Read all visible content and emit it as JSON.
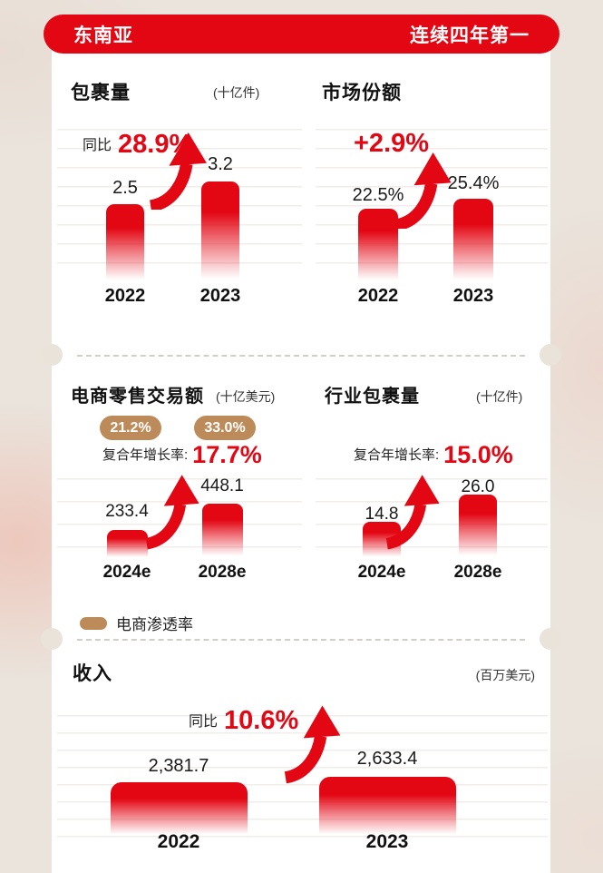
{
  "header": {
    "left_label": "东南亚",
    "right_label": "连续四年第一"
  },
  "colors": {
    "accent_red": "#e30613",
    "gold": "#bd8b59",
    "text": "#1a1a1a",
    "gridline": "#f0edea",
    "background": "#eae4dc",
    "card": "#ffffff"
  },
  "legend": {
    "label": "电商渗透率"
  },
  "chart_data": [
    {
      "type": "bar",
      "title": "包裹量",
      "unit": "(十亿件)",
      "growth_label": "同比",
      "growth_value": "28.9%",
      "categories": [
        "2022",
        "2023"
      ],
      "values": [
        2.5,
        3.2
      ],
      "value_labels": [
        "2.5",
        "3.2"
      ],
      "ylim": [
        0,
        4
      ],
      "grid": true,
      "bar_color": "#e30613",
      "legend_position": "none"
    },
    {
      "type": "bar",
      "title": "市场份额",
      "unit": "",
      "growth_value": "+2.9%",
      "categories": [
        "2022",
        "2023"
      ],
      "values": [
        22.5,
        25.4
      ],
      "value_labels": [
        "22.5%",
        "25.4%"
      ],
      "ylim": [
        0,
        30
      ],
      "grid": true,
      "bar_color": "#e30613",
      "legend_position": "none"
    },
    {
      "type": "bar",
      "title": "电商零售交易额",
      "unit": "(十亿美元)",
      "penetration_badges": [
        "21.2%",
        "33.0%"
      ],
      "cagr_label": "复合年增长率:",
      "cagr_value": "17.7%",
      "categories": [
        "2024e",
        "2028e"
      ],
      "values": [
        233.4,
        448.1
      ],
      "value_labels": [
        "233.4",
        "448.1"
      ],
      "ylim": [
        0,
        450
      ],
      "grid": true,
      "bar_color": "#e30613",
      "legend_position": "below"
    },
    {
      "type": "bar",
      "title": "行业包裹量",
      "unit": "(十亿件)",
      "cagr_label": "复合年增长率:",
      "cagr_value": "15.0%",
      "categories": [
        "2024e",
        "2028e"
      ],
      "values": [
        14.8,
        26.0
      ],
      "value_labels": [
        "14.8",
        "26.0"
      ],
      "ylim": [
        0,
        26
      ],
      "grid": true,
      "bar_color": "#e30613",
      "legend_position": "none"
    },
    {
      "type": "bar",
      "title": "收入",
      "unit": "(百万美元)",
      "growth_label": "同比",
      "growth_value": "10.6%",
      "categories": [
        "2022",
        "2023"
      ],
      "values": [
        2381.7,
        2633.4
      ],
      "value_labels": [
        "2,381.7",
        "2,633.4"
      ],
      "ylim": [
        0,
        2700
      ],
      "grid": true,
      "bar_color": "#e30613",
      "legend_position": "none"
    }
  ]
}
